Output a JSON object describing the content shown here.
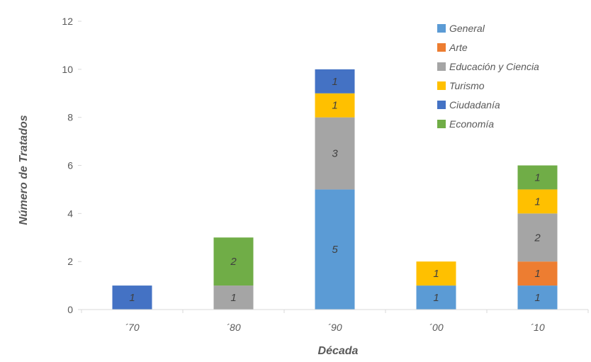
{
  "chart_data": {
    "type": "bar",
    "stacked": true,
    "xlabel": "Década",
    "ylabel": "Número de Tratados",
    "ylim": [
      0,
      12
    ],
    "yticks": [
      0,
      2,
      4,
      6,
      8,
      10,
      12
    ],
    "grid": false,
    "legend_position": "top-right",
    "categories": [
      "´70",
      "´80",
      "´90",
      "´00",
      "´10"
    ],
    "series": [
      {
        "name": "General",
        "color": "#5B9BD5",
        "values": [
          0,
          0,
          5,
          1,
          1
        ]
      },
      {
        "name": "Arte",
        "color": "#ED7D31",
        "values": [
          0,
          0,
          0,
          0,
          1
        ]
      },
      {
        "name": "Educación y Ciencia",
        "color": "#A5A5A5",
        "values": [
          0,
          1,
          3,
          0,
          2
        ]
      },
      {
        "name": "Turismo",
        "color": "#FFC000",
        "values": [
          0,
          0,
          1,
          1,
          1
        ]
      },
      {
        "name": "Ciudadanía",
        "color": "#4472C4",
        "values": [
          1,
          0,
          1,
          0,
          0
        ]
      },
      {
        "name": "Economía",
        "color": "#70AD47",
        "values": [
          0,
          2,
          0,
          0,
          1
        ]
      }
    ]
  }
}
